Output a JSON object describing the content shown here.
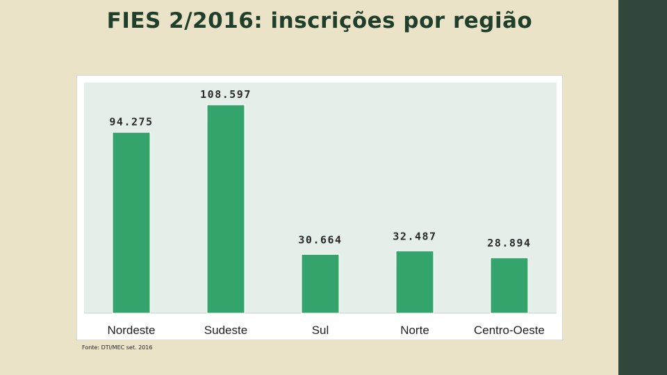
{
  "slide": {
    "title": "FIES 2/2016: inscrições por região",
    "source": "Fonte: DTI/MEC set. 2016"
  },
  "colors": {
    "background": "#ebe3c8",
    "side_band": "#33483c",
    "bar": "#34a46c",
    "plot_area": "#e6eee9",
    "title": "#1f3f2a"
  },
  "chart_data": {
    "type": "bar",
    "categories": [
      "Nordeste",
      "Sudeste",
      "Sul",
      "Norte",
      "Centro-Oeste"
    ],
    "values": [
      94275,
      108597,
      30664,
      32487,
      28894
    ],
    "data_labels": [
      "94.275",
      "108.597",
      "30.664",
      "32.487",
      "28.894"
    ],
    "title": "",
    "xlabel": "",
    "ylabel": "",
    "ylim": [
      0,
      120000
    ],
    "grid": false,
    "legend": "none"
  }
}
